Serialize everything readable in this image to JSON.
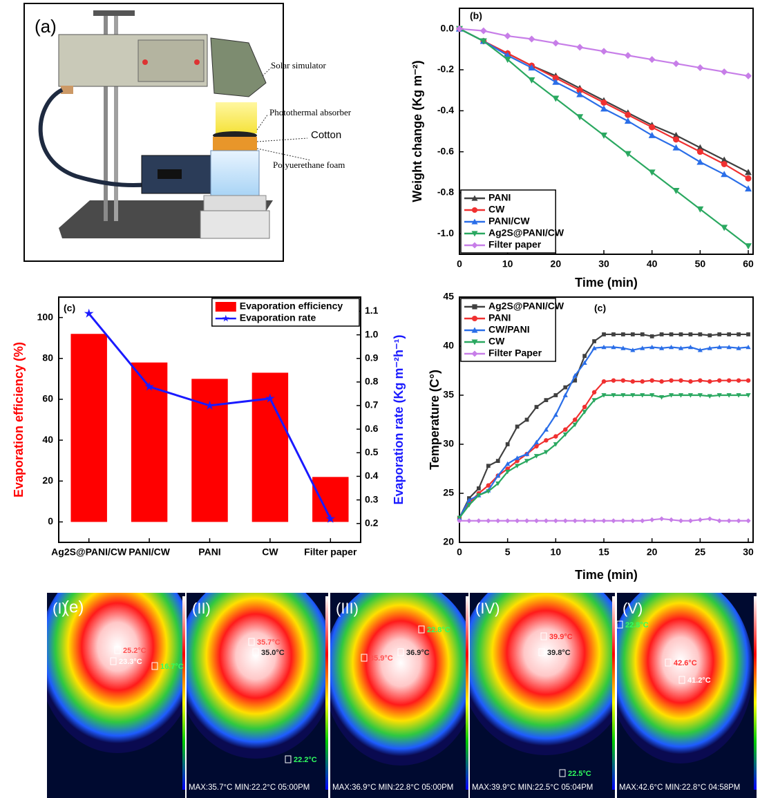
{
  "panel_a": {
    "label": "(a)",
    "solar_simulator": "Solar simulator",
    "absorber": "Photothermal absorber",
    "cotton": "Cotton",
    "foam": "Polyuerethane foam"
  },
  "chart_data": [
    {
      "type": "line",
      "title": "(b)",
      "x_label": "Time (min)",
      "y_label": "Weight change (Kg m⁻²)",
      "x": [
        0,
        5,
        10,
        15,
        20,
        25,
        30,
        35,
        40,
        45,
        50,
        55,
        60
      ],
      "xlim": [
        0,
        61
      ],
      "xticks": [
        0,
        10,
        20,
        30,
        40,
        50,
        60
      ],
      "ylim": [
        -1.1,
        0.1
      ],
      "yticks": [
        {
          "value": 0,
          "label": "0.0"
        },
        -0.2,
        -0.4,
        -0.6,
        -0.8,
        {
          "value": -1,
          "label": "-1.0"
        }
      ],
      "legend": "lower left",
      "series": [
        {
          "name": "PANI",
          "color": "#404040",
          "marker": "triangle-up",
          "values": [
            0,
            -0.06,
            -0.12,
            -0.18,
            -0.23,
            -0.29,
            -0.35,
            -0.41,
            -0.47,
            -0.52,
            -0.58,
            -0.64,
            -0.7
          ]
        },
        {
          "name": "CW",
          "color": "#f03030",
          "marker": "circle",
          "values": [
            0,
            -0.06,
            -0.12,
            -0.18,
            -0.24,
            -0.3,
            -0.36,
            -0.42,
            -0.48,
            -0.54,
            -0.6,
            -0.66,
            -0.73
          ]
        },
        {
          "name": "PANI/CW",
          "color": "#2a6ee8",
          "marker": "triangle-up",
          "values": [
            0,
            -0.06,
            -0.13,
            -0.19,
            -0.26,
            -0.32,
            -0.39,
            -0.45,
            -0.52,
            -0.58,
            -0.65,
            -0.71,
            -0.78
          ]
        },
        {
          "name": "Ag2S@PANI/CW",
          "color": "#2aa860",
          "marker": "triangle-down",
          "values": [
            0,
            -0.06,
            -0.15,
            -0.25,
            -0.34,
            -0.43,
            -0.52,
            -0.61,
            -0.7,
            -0.79,
            -0.88,
            -0.97,
            -1.06
          ]
        },
        {
          "name": "Filter paper",
          "color": "#c77ee8",
          "marker": "diamond",
          "values": [
            0,
            -0.01,
            -0.035,
            -0.05,
            -0.07,
            -0.09,
            -0.11,
            -0.13,
            -0.15,
            -0.17,
            -0.19,
            -0.21,
            -0.23
          ]
        }
      ]
    },
    {
      "type": "bar",
      "title": "(c)",
      "categories": [
        "Ag2S@PANI/CW",
        "PANI/CW",
        "PANI",
        "CW",
        "Filter paper"
      ],
      "y_label": "Evaporation efficiency (%)",
      "y2_label": "Evaporation rate (Kg m⁻²h⁻¹)",
      "ylim": [
        -10,
        110
      ],
      "yticks": [
        0,
        20,
        40,
        60,
        80,
        100
      ],
      "y2lim": [
        0.12,
        1.16
      ],
      "y2ticks": [
        0.2,
        0.3,
        0.4,
        0.5,
        0.6,
        0.7,
        0.8,
        0.9,
        {
          "value": 1,
          "label": "1.0"
        },
        1.1
      ],
      "legend": "upper right",
      "series": [
        {
          "name": "Evaporation efficiency",
          "color": "#ff0000",
          "values": [
            92,
            78,
            70,
            73,
            22
          ]
        },
        {
          "name": "Evaporation rate",
          "color": "#1a1aff",
          "axis": "y2",
          "marker": "star",
          "values": [
            1.09,
            0.78,
            0.7,
            0.73,
            0.22
          ]
        }
      ]
    },
    {
      "type": "line",
      "title": "(c)",
      "x_label": "Time (min)",
      "y_label": "Temperature (C°)",
      "x": [
        0,
        1,
        2,
        3,
        4,
        5,
        6,
        7,
        8,
        9,
        10,
        11,
        12,
        13,
        14,
        15,
        16,
        17,
        18,
        19,
        20,
        21,
        22,
        23,
        24,
        25,
        26,
        27,
        28,
        29,
        30
      ],
      "xlim": [
        0,
        30.5
      ],
      "xticks": [
        0,
        5,
        10,
        15,
        20,
        25,
        30
      ],
      "ylim": [
        20,
        45
      ],
      "yticks": [
        20,
        25,
        30,
        35,
        40,
        45
      ],
      "legend": "upper left",
      "series": [
        {
          "name": "Ag2S@PANI/CW",
          "color": "#404040",
          "marker": "square",
          "values": [
            22.5,
            24.5,
            25.5,
            27.8,
            28.3,
            30,
            31.8,
            32.5,
            33.8,
            34.5,
            35,
            35.8,
            36.5,
            39,
            40.5,
            41.2,
            41.2,
            41.2,
            41.2,
            41.2,
            41.0,
            41.2,
            41.2,
            41.2,
            41.2,
            41.2,
            41.1,
            41.2,
            41.2,
            41.2,
            41.2
          ]
        },
        {
          "name": "PANI",
          "color": "#f03030",
          "marker": "circle",
          "values": [
            22.5,
            24,
            25,
            25.8,
            26.8,
            27.5,
            28.3,
            29,
            29.8,
            30.4,
            30.8,
            31.5,
            32.5,
            33.8,
            35.3,
            36.4,
            36.5,
            36.5,
            36.4,
            36.4,
            36.5,
            36.4,
            36.5,
            36.5,
            36.4,
            36.5,
            36.4,
            36.5,
            36.5,
            36.5,
            36.5
          ]
        },
        {
          "name": "CW/PANI",
          "color": "#2a6ee8",
          "marker": "triangle-up",
          "values": [
            22.5,
            24.3,
            24.8,
            25.3,
            26.8,
            28,
            28.6,
            29,
            30.2,
            31.5,
            33,
            35,
            37,
            38.3,
            39.8,
            39.9,
            39.9,
            39.8,
            39.6,
            39.8,
            39.9,
            39.8,
            39.9,
            39.8,
            39.9,
            39.6,
            39.8,
            39.9,
            39.9,
            39.8,
            39.9
          ]
        },
        {
          "name": "CW",
          "color": "#2aa860",
          "marker": "triangle-down",
          "values": [
            22.5,
            23.8,
            24.8,
            25.2,
            26,
            27.2,
            27.8,
            28.3,
            28.8,
            29.2,
            30,
            31,
            32,
            33.3,
            34.5,
            35,
            35,
            35,
            35,
            35,
            35,
            34.8,
            35,
            35,
            35,
            35,
            34.9,
            35,
            35,
            35,
            35
          ]
        },
        {
          "name": "Filter Paper",
          "color": "#c77ee8",
          "marker": "diamond",
          "values": [
            22.2,
            22.2,
            22.2,
            22.2,
            22.2,
            22.2,
            22.2,
            22.2,
            22.2,
            22.2,
            22.2,
            22.2,
            22.2,
            22.2,
            22.2,
            22.2,
            22.2,
            22.2,
            22.2,
            22.2,
            22.3,
            22.4,
            22.3,
            22.2,
            22.2,
            22.3,
            22.4,
            22.2,
            22.2,
            22.2,
            22.2
          ]
        }
      ]
    }
  ],
  "panel_e": {
    "label": "(e)",
    "images": [
      {
        "label": "(I)",
        "spots": [
          "25.2°C",
          "23.3°C",
          "16.7°C"
        ]
      },
      {
        "label": "(II)",
        "spots": [
          "35.7°C",
          "35.0°C",
          "22.2°C"
        ],
        "footer": "MAX:35.7°C MIN:22.2°C 05:00PM"
      },
      {
        "label": "(III)",
        "spots": [
          "22.8°C",
          "36.9°C",
          "35.9°C"
        ],
        "footer": "MAX:36.9°C MIN:22.8°C 05:00PM"
      },
      {
        "label": "(IV)",
        "spots": [
          "39.9°C",
          "39.8°C",
          "22.5°C"
        ],
        "footer": "MAX:39.9°C MIN:22.5°C 05:04PM"
      },
      {
        "label": "(V)",
        "spots": [
          "22.8°C",
          "42.6°C",
          "41.2°C"
        ],
        "footer": "MAX:42.6°C MIN:22.8°C 04:58PM"
      }
    ]
  }
}
